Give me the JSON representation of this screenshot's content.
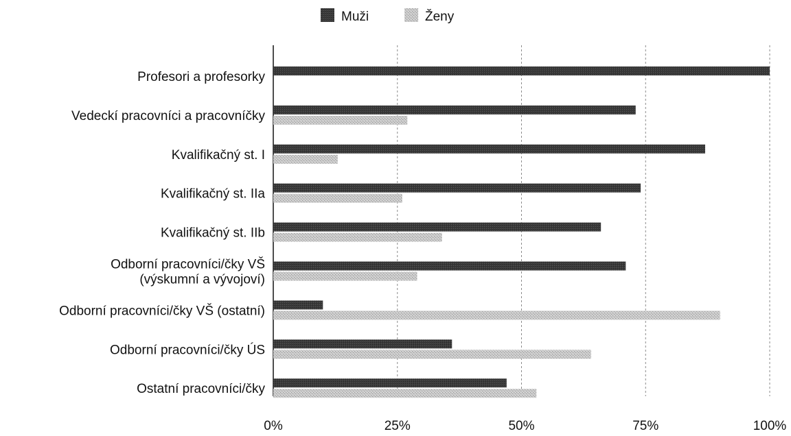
{
  "chart_data": {
    "type": "bar",
    "orientation": "horizontal",
    "categories": [
      "Profesori a profesorky",
      "Vedeckí pracovníci a pracovníčky",
      "Kvalifikačný st. I",
      "Kvalifikačný st. IIa",
      "Kvalifikačný st. IIb",
      "Odborní pracovníci/čky VŠ\n(výskumní a vývojoví)",
      "Odborní pracovníci/čky VŠ (ostatní)",
      "Odborní pracovníci/čky ÚS",
      "Ostatní pracovníci/čky"
    ],
    "series": [
      {
        "name": "Muži",
        "color": "#3d3d3d",
        "values": [
          100,
          73,
          87,
          74,
          66,
          71,
          10,
          36,
          47
        ]
      },
      {
        "name": "Ženy",
        "color": "#c2c2c2",
        "values": [
          0,
          27,
          13,
          26,
          34,
          29,
          90,
          64,
          53
        ]
      }
    ],
    "xlim": [
      0,
      100
    ],
    "x_ticks": [
      "0%",
      "25%",
      "50%",
      "75%",
      "100%"
    ],
    "grid": "vertical dashed",
    "legend_position": "top-center",
    "title": "",
    "xlabel": "",
    "ylabel": ""
  }
}
